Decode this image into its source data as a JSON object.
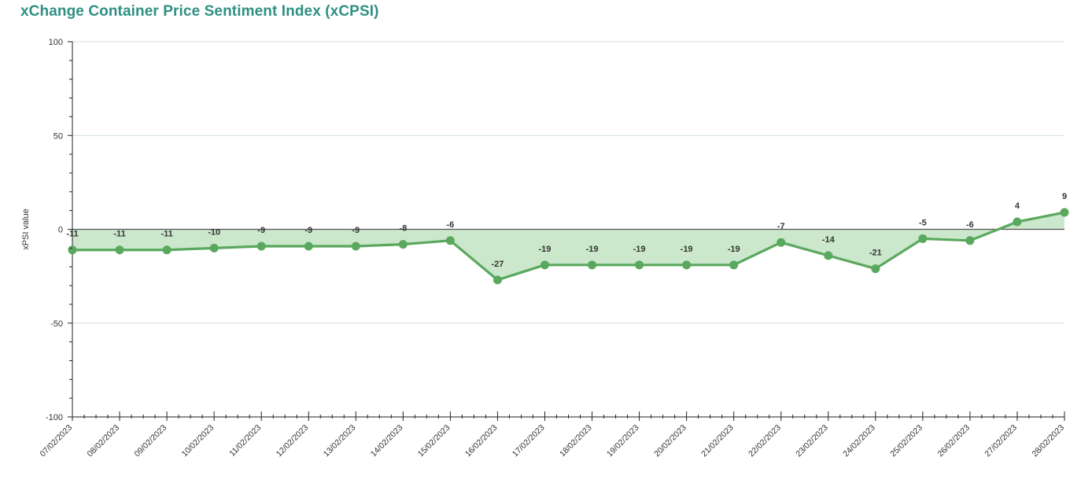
{
  "header": {
    "title": "xChange Container Price Sentiment Index (xCPSI)"
  },
  "chart_data": {
    "type": "area",
    "title": "xChange Container Price Sentiment Index (xCPSI)",
    "xlabel": "",
    "ylabel": "xPSI value",
    "ylim": [
      -100,
      100
    ],
    "yticks": [
      -100,
      -50,
      0,
      50,
      100
    ],
    "grid": true,
    "categories": [
      "07/02/2023",
      "08/02/2023",
      "09/02/2023",
      "10/02/2023",
      "11/02/2023",
      "12/02/2023",
      "13/02/2023",
      "14/02/2023",
      "15/02/2023",
      "16/02/2023",
      "17/02/2023",
      "18/02/2023",
      "19/02/2023",
      "20/02/2023",
      "21/02/2023",
      "22/02/2023",
      "23/02/2023",
      "24/02/2023",
      "25/02/2023",
      "26/02/2023",
      "27/02/2023",
      "28/02/2023"
    ],
    "series": [
      {
        "values": [
          -11,
          -11,
          -11,
          -10,
          -9,
          -9,
          -9,
          -8,
          -6,
          -27,
          -19,
          -19,
          -19,
          -19,
          -19,
          -7,
          -14,
          -21,
          -5,
          -6,
          4,
          9
        ]
      }
    ],
    "colors": {
      "line": "#5aa85e",
      "fill": "#c8e6c9",
      "grid": "#cfe3d0",
      "zero": "#555555",
      "title": "#2f8f83"
    }
  }
}
